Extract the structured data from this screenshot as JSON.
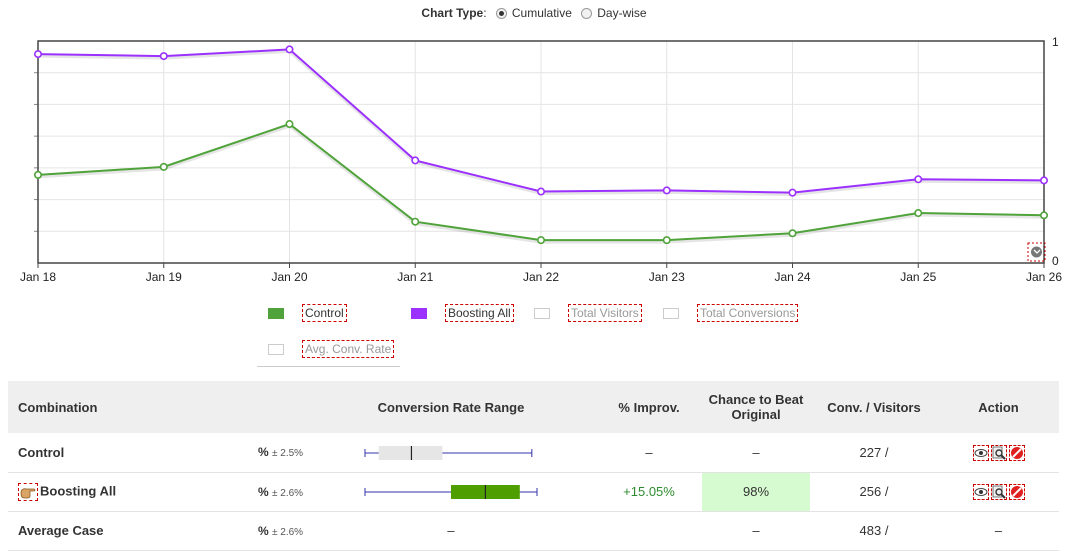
{
  "chart_type_selector": {
    "label": "Chart Type",
    "options": [
      "Cumulative",
      "Day-wise"
    ],
    "selected": "Cumulative"
  },
  "chart_data": {
    "type": "line",
    "categories": [
      "Jan 18",
      "Jan 19",
      "Jan 20",
      "Jan 21",
      "Jan 22",
      "Jan 23",
      "Jan 24",
      "Jan 25",
      "Jan 26"
    ],
    "series": [
      {
        "name": "Boosting All",
        "color": "#9b30ff",
        "values": [
          0.941,
          0.932,
          0.962,
          0.462,
          0.322,
          0.327,
          0.317,
          0.377,
          0.372
        ]
      },
      {
        "name": "Control",
        "color": "#4fa33a",
        "values": [
          0.397,
          0.433,
          0.626,
          0.186,
          0.103,
          0.103,
          0.134,
          0.225,
          0.215
        ]
      }
    ],
    "ylim": [
      0,
      1
    ],
    "right_axis_ticks": [
      "1",
      "0"
    ],
    "grid": true
  },
  "legend": {
    "items": [
      {
        "label": "Control",
        "color": "#4fa33a",
        "active": true
      },
      {
        "label": "Boosting All",
        "color": "#9b30ff",
        "active": true
      },
      {
        "label": "Total Visitors",
        "color": "#ffffff",
        "active": false
      },
      {
        "label": "Total Conversions",
        "color": "#ffffff",
        "active": false
      },
      {
        "label": "Avg. Conv. Rate",
        "color": "#ffffff",
        "active": false
      }
    ]
  },
  "table": {
    "headers": {
      "combination": "Combination",
      "range": "Conversion Rate Range",
      "improv": "% Improv.",
      "chance": "Chance to Beat Original",
      "conv": "Conv. / Visitors",
      "action": "Action"
    },
    "rows": [
      {
        "name": "Control",
        "pct": "%",
        "pm": "± 2.5%",
        "improv": "–",
        "chance": "–",
        "conv": "227 /",
        "range": {
          "lo": 0.0,
          "q1": 0.08,
          "med": 0.27,
          "q3": 0.45,
          "hi": 0.97
        },
        "box_color": "#e6e6e6",
        "has_actions": true
      },
      {
        "name": "Boosting All",
        "pct": "%",
        "pm": "± 2.6%",
        "improv": "+15.05%",
        "chance": "98%",
        "conv": "256 /",
        "range": {
          "lo": 0.0,
          "q1": 0.5,
          "med": 0.7,
          "q3": 0.9,
          "hi": 1.0
        },
        "box_color": "#4f9e00",
        "has_actions": true
      },
      {
        "name": "Average Case",
        "pct": "%",
        "pm": "± 2.6%",
        "range_text": "–",
        "improv": "",
        "chance": "–",
        "conv": "483 /",
        "action": "–"
      }
    ]
  }
}
